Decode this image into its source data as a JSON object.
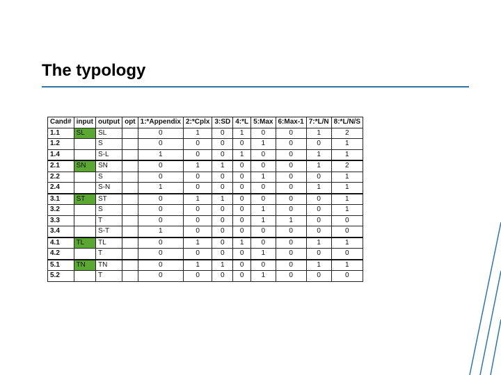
{
  "title": "The typology",
  "colors": {
    "rule": "#2e75a6",
    "input_cell": "#5aa832",
    "decor": "#2e75a6"
  },
  "table": {
    "headers": [
      "Cand#",
      "input",
      "output",
      "opt",
      "1:*Appendix",
      "2:*Cplx",
      "3:SD",
      "4:*L",
      "5:Max",
      "6:Max-1",
      "7:*L/N",
      "8:*L/N/S"
    ],
    "rows": [
      {
        "cand": "1.1",
        "input": "SL",
        "output": "SL",
        "opt": "",
        "values": [
          "0",
          "1",
          "0",
          "1",
          "0",
          "0",
          "1",
          "2"
        ]
      },
      {
        "cand": "1.2",
        "input": "",
        "output": "S",
        "opt": "",
        "values": [
          "0",
          "0",
          "0",
          "0",
          "1",
          "0",
          "0",
          "1"
        ]
      },
      {
        "cand": "1.4",
        "input": "",
        "output": "S-L",
        "opt": "",
        "values": [
          "1",
          "0",
          "0",
          "1",
          "0",
          "0",
          "1",
          "1"
        ]
      },
      {
        "cand": "2.1",
        "input": "SN",
        "output": "SN",
        "opt": "",
        "values": [
          "0",
          "1",
          "1",
          "0",
          "0",
          "0",
          "1",
          "2"
        ]
      },
      {
        "cand": "2.2",
        "input": "",
        "output": "S",
        "opt": "",
        "values": [
          "0",
          "0",
          "0",
          "0",
          "1",
          "0",
          "0",
          "1"
        ]
      },
      {
        "cand": "2.4",
        "input": "",
        "output": "S-N",
        "opt": "",
        "values": [
          "1",
          "0",
          "0",
          "0",
          "0",
          "0",
          "1",
          "1"
        ]
      },
      {
        "cand": "3.1",
        "input": "ST",
        "output": "ST",
        "opt": "",
        "values": [
          "0",
          "1",
          "1",
          "0",
          "0",
          "0",
          "0",
          "1"
        ]
      },
      {
        "cand": "3.2",
        "input": "",
        "output": "S",
        "opt": "",
        "values": [
          "0",
          "0",
          "0",
          "0",
          "1",
          "0",
          "0",
          "1"
        ]
      },
      {
        "cand": "3.3",
        "input": "",
        "output": "T",
        "opt": "",
        "values": [
          "0",
          "0",
          "0",
          "0",
          "1",
          "1",
          "0",
          "0"
        ]
      },
      {
        "cand": "3.4",
        "input": "",
        "output": "S-T",
        "opt": "",
        "values": [
          "1",
          "0",
          "0",
          "0",
          "0",
          "0",
          "0",
          "0"
        ]
      },
      {
        "cand": "4.1",
        "input": "TL",
        "output": "TL",
        "opt": "",
        "values": [
          "0",
          "1",
          "0",
          "1",
          "0",
          "0",
          "1",
          "1"
        ]
      },
      {
        "cand": "4.2",
        "input": "",
        "output": "T",
        "opt": "",
        "values": [
          "0",
          "0",
          "0",
          "0",
          "1",
          "0",
          "0",
          "0"
        ]
      },
      {
        "cand": "5.1",
        "input": "TN",
        "output": "TN",
        "opt": "",
        "values": [
          "0",
          "1",
          "1",
          "0",
          "0",
          "0",
          "1",
          "1"
        ]
      },
      {
        "cand": "5.2",
        "input": "",
        "output": "T",
        "opt": "",
        "values": [
          "0",
          "0",
          "0",
          "0",
          "1",
          "0",
          "0",
          "0"
        ]
      }
    ]
  }
}
